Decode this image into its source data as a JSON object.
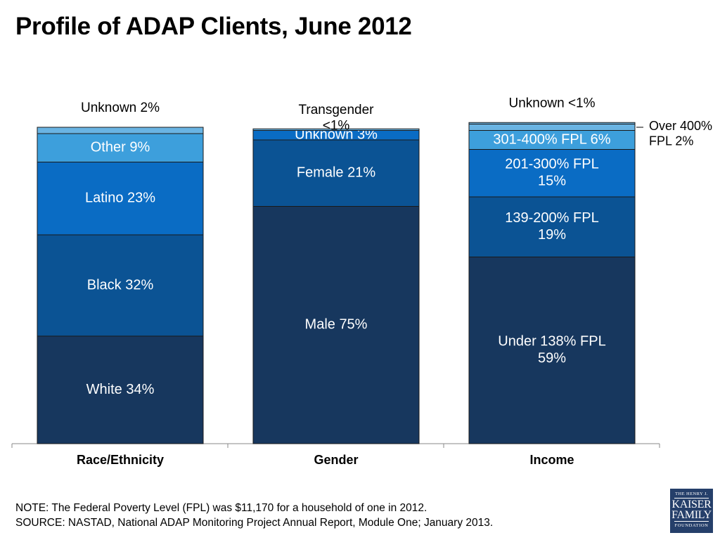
{
  "title": "Profile of ADAP Clients, June 2012",
  "footer": {
    "note": "NOTE: The Federal Poverty Level (FPL) was $11,170 for a household of one in 2012.",
    "source": "SOURCE: NASTAD, National ADAP Monitoring Project Annual Report, Module One; January 2013."
  },
  "logo": {
    "line1": "THE HENRY J.",
    "line2": "KAISER",
    "line3": "FAMILY",
    "line4": "FOUNDATION"
  },
  "chart_data": {
    "type": "bar",
    "stacked": true,
    "percent": true,
    "ylim": [
      0,
      100
    ],
    "grid": false,
    "categories": [
      "Race/Ethnicity",
      "Gender",
      "Income"
    ],
    "colors": {
      "darkest": "#17375e",
      "dark": "#0b5394",
      "medium": "#0a6cc4",
      "light": "#3d9fdc",
      "lightest": "#6ab4e3",
      "border": "#1a1a1a"
    },
    "groups": [
      {
        "category": "Race/Ethnicity",
        "segments": [
          {
            "name": "White",
            "value": 34,
            "label": "White 34%",
            "color": "darkest",
            "label_inside": true
          },
          {
            "name": "Black",
            "value": 32,
            "label": "Black 32%",
            "color": "dark",
            "label_inside": true
          },
          {
            "name": "Latino",
            "value": 23,
            "label": "Latino 23%",
            "color": "medium",
            "label_inside": true
          },
          {
            "name": "Other",
            "value": 9,
            "label": "Other 9%",
            "color": "light",
            "label_inside": true
          },
          {
            "name": "Unknown",
            "value": 2,
            "label": "Unknown 2%",
            "color": "lightest",
            "label_inside": false
          }
        ]
      },
      {
        "category": "Gender",
        "segments": [
          {
            "name": "Male",
            "value": 75,
            "label": "Male 75%",
            "color": "darkest",
            "label_inside": true
          },
          {
            "name": "Female",
            "value": 21,
            "label": "Female 21%",
            "color": "dark",
            "label_inside": true
          },
          {
            "name": "Unknown",
            "value": 3,
            "label": "Unknown 3%",
            "color": "medium",
            "label_inside": true
          },
          {
            "name": "Transgender",
            "value": 0.5,
            "label": "Transgender <1%",
            "color": "lightest",
            "label_inside": false
          }
        ]
      },
      {
        "category": "Income",
        "segments": [
          {
            "name": "Under 138% FPL",
            "value": 59,
            "label": "Under 138% FPL 59%",
            "color": "darkest",
            "label_inside": true
          },
          {
            "name": "139-200% FPL",
            "value": 19,
            "label": "139-200% FPL 19%",
            "color": "dark",
            "label_inside": true
          },
          {
            "name": "201-300% FPL",
            "value": 15,
            "label": "201-300% FPL 15%",
            "color": "medium",
            "label_inside": true
          },
          {
            "name": "301-400% FPL",
            "value": 6,
            "label": "301-400% FPL 6%",
            "color": "light",
            "label_inside": true
          },
          {
            "name": "Over 400% FPL",
            "value": 2,
            "label": "Over 400% FPL 2%",
            "color": "lightest",
            "label_inside": false
          },
          {
            "name": "Unknown",
            "value": 0.5,
            "label": "Unknown <1%",
            "color": "lightest",
            "label_inside": false
          }
        ]
      }
    ],
    "label_lines": {
      "White 34%": [
        "White 34%"
      ],
      "Black 32%": [
        "Black 32%"
      ],
      "Latino 23%": [
        "Latino 23%"
      ],
      "Other 9%": [
        "Other 9%"
      ],
      "Unknown 2%": [
        "Unknown 2%"
      ],
      "Male 75%": [
        "Male 75%"
      ],
      "Female 21%": [
        "Female 21%"
      ],
      "Unknown 3%": [
        "Unknown 3%"
      ],
      "Transgender <1%": [
        "Transgender",
        "<1%"
      ],
      "Under 138% FPL 59%": [
        "Under 138% FPL",
        "59%"
      ],
      "139-200% FPL 19%": [
        "139-200% FPL",
        "19%"
      ],
      "201-300% FPL 15%": [
        "201-300% FPL",
        "15%"
      ],
      "301-400% FPL 6%": [
        "301-400% FPL 6%"
      ],
      "Over 400% FPL 2%": [
        "Over 400%",
        "FPL 2%"
      ],
      "Unknown <1%": [
        "Unknown <1%"
      ]
    }
  }
}
